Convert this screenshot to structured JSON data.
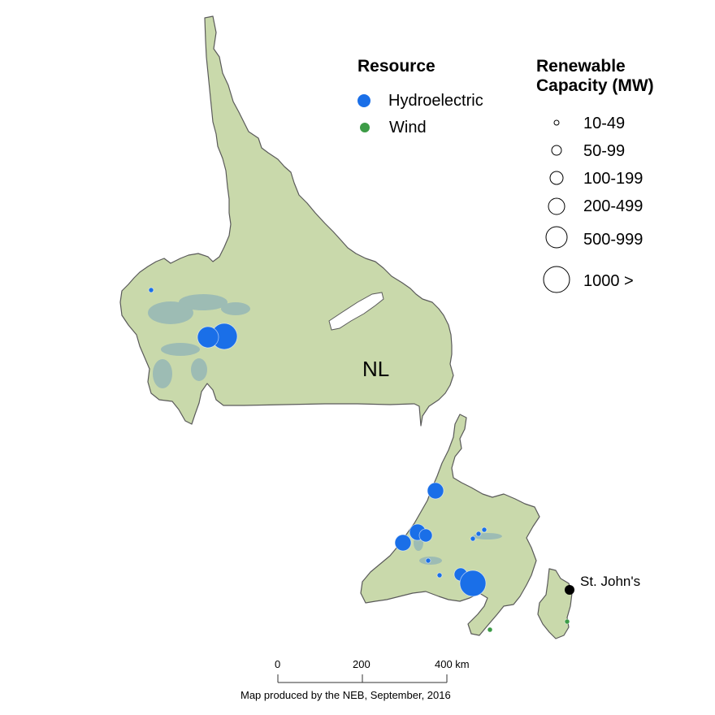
{
  "map": {
    "region_label": "NL",
    "city": {
      "name": "St. John's"
    }
  },
  "legend_resource": {
    "title": "Resource",
    "items": [
      {
        "label": "Hydroelectric",
        "color": "#1a6fe8"
      },
      {
        "label": "Wind",
        "color": "#3c9b46"
      }
    ]
  },
  "legend_capacity": {
    "title": "Renewable Capacity (MW)",
    "classes": [
      "10-49",
      "50-99",
      "100-199",
      "200-499",
      "500-999",
      "1000 >"
    ]
  },
  "scale_bar": {
    "ticks": [
      "0",
      "200",
      "400 km"
    ]
  },
  "credit": "Map produced by the NEB, September, 2016",
  "stations": [
    {
      "resource": "Hydroelectric",
      "capacity_class": "1000 >"
    },
    {
      "resource": "Hydroelectric",
      "capacity_class": "500-999"
    },
    {
      "resource": "Hydroelectric",
      "capacity_class": "10-49"
    },
    {
      "resource": "Hydroelectric",
      "capacity_class": "200-499"
    },
    {
      "resource": "Hydroelectric",
      "capacity_class": "200-499"
    },
    {
      "resource": "Hydroelectric",
      "capacity_class": "200-499"
    },
    {
      "resource": "Hydroelectric",
      "capacity_class": "100-199"
    },
    {
      "resource": "Hydroelectric",
      "capacity_class": "10-49"
    },
    {
      "resource": "Hydroelectric",
      "capacity_class": "10-49"
    },
    {
      "resource": "Hydroelectric",
      "capacity_class": "10-49"
    },
    {
      "resource": "Hydroelectric",
      "capacity_class": "10-49"
    },
    {
      "resource": "Hydroelectric",
      "capacity_class": "10-49"
    },
    {
      "resource": "Hydroelectric",
      "capacity_class": "100-199"
    },
    {
      "resource": "Hydroelectric",
      "capacity_class": "1000 >"
    },
    {
      "resource": "Wind",
      "capacity_class": "10-49"
    },
    {
      "resource": "Wind",
      "capacity_class": "10-49"
    }
  ]
}
